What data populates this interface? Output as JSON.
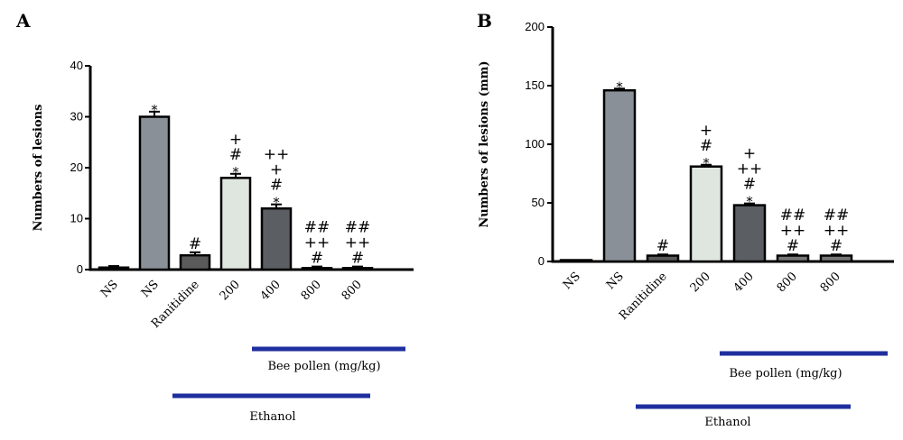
{
  "chart_data": [
    {
      "type": "bar",
      "panel": "A",
      "ylabel": "Numbers of lesions",
      "ylim": [
        0,
        40
      ],
      "yticks": [
        "0",
        "10",
        "20",
        "30",
        "40"
      ],
      "categories": [
        "NS",
        "NS",
        "Ranitidine",
        "200",
        "400",
        "800",
        "800"
      ],
      "values": [
        0.4,
        30,
        2.8,
        18,
        12,
        0.3,
        0.3
      ],
      "errors": [
        0.3,
        1.0,
        0.6,
        0.8,
        0.8,
        0.3,
        0.3
      ],
      "bar_colors": [
        "#8c8c8c",
        "#8a9097",
        "#5a5a5a",
        "#dfe6df",
        "#5b5f63",
        "#777777",
        "#777777"
      ],
      "significance": [
        [],
        [
          "*"
        ],
        [
          "#"
        ],
        [
          "*",
          "#",
          "+"
        ],
        [
          "*",
          "#",
          "+",
          "++"
        ],
        [
          "#",
          "++",
          "##"
        ],
        [
          "#",
          "++",
          "##"
        ]
      ],
      "groups": [
        {
          "label": "Bee pollen (mg/kg)",
          "from": 3,
          "to": 6
        },
        {
          "label": "Ethanol",
          "from": 1,
          "to": 6
        }
      ]
    },
    {
      "type": "bar",
      "panel": "B",
      "ylabel": "Numbers of lesions (mm)",
      "ylim": [
        0,
        200
      ],
      "yticks": [
        "0",
        "50",
        "100",
        "150",
        "200"
      ],
      "categories": [
        "NS",
        "NS",
        "Ranitidine",
        "200",
        "400",
        "800",
        "800"
      ],
      "values": [
        0.5,
        146,
        5,
        81,
        48,
        5,
        5
      ],
      "errors": [
        0.5,
        1.5,
        1,
        1.5,
        1.5,
        1,
        1
      ],
      "bar_colors": [
        "#8c8c8c",
        "#8a9097",
        "#5a5a5a",
        "#dfe6df",
        "#5b5f63",
        "#777777",
        "#777777"
      ],
      "significance": [
        [],
        [
          "*"
        ],
        [
          "#"
        ],
        [
          "*",
          "#",
          "+"
        ],
        [
          "*",
          "#",
          "++",
          "+"
        ],
        [
          "#",
          "++",
          "##"
        ],
        [
          "#",
          "++",
          "##"
        ]
      ],
      "groups": [
        {
          "label": "Bee pollen (mg/kg)",
          "from": 3,
          "to": 6
        },
        {
          "label": "Ethanol",
          "from": 1,
          "to": 6
        }
      ]
    }
  ]
}
